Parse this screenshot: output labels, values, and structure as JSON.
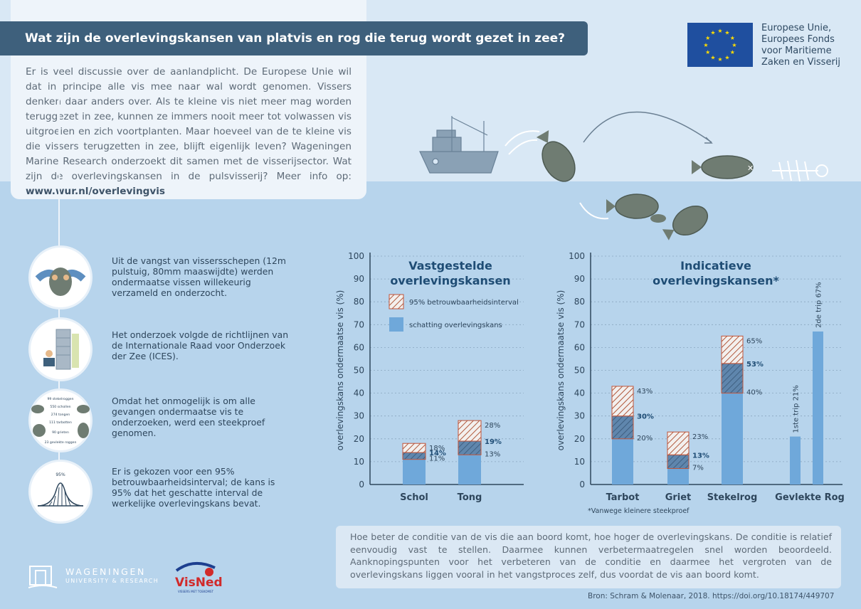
{
  "header": {
    "title": "Wat zijn de overlevingskansen van platvis en rog die terug wordt gezet in zee?",
    "intro": "Er is veel discussie over de aanlandplicht. De Europese Unie wil dat in principe alle vis mee naar wal wordt genomen. Vissers denken daar anders over. Als te kleine vis niet meer mag worden teruggezet in zee, kunnen ze immers nooit meer tot volwassen vis uitgroeien en zich voortplanten. Maar hoeveel van de te kleine vis die vissers terugzetten in zee, blijft eigenlijk leven? Wageningen Marine Research onderzoekt dit samen met de visserijsector. Wat zijn de overlevingskansen in de pulsvisserij? Meer info op: ",
    "intro_link": "www.wur.nl/overlevingvis"
  },
  "eu": {
    "line1": "Europese Unie,",
    "line2": "Europees Fonds",
    "line3": "voor Maritieme",
    "line4": "Zaken en Visserij",
    "flag_color": "#1f4f9f",
    "star_color": "#ffdd00"
  },
  "steps": [
    {
      "text": "Uit de vangst van vissersschepen (12m pulstuig, 80mm maaswijdte) werden ondermaatse vissen willekeurig verzameld en onderzocht.",
      "icon": "hands-holding-fish-icon"
    },
    {
      "text": "Het onderzoek volgde de richtlijnen van de Internationale Raad voor Onderzoek der Zee (ICES).",
      "icon": "researcher-lab-icon"
    },
    {
      "text": "Omdat het onmogelijk is om alle gevangen ondermaatse vis te onderzoeken, werd een steekproef genomen.",
      "icon": "sample-fish-icon",
      "sample_labels": [
        "99 stekelroggen",
        "550 schollen",
        "274 tongen",
        "111 tarbotten",
        "90 grieten",
        "23 gevlekte roggen"
      ]
    },
    {
      "text": "Er is gekozen voor een 95% betrouwbaarheidsinterval; de kans is 95% dat het geschatte interval de werkelijke overlevingskans bevat.",
      "icon": "bell-curve-icon",
      "curve_label": "95%"
    }
  ],
  "chart_data": [
    {
      "type": "bar",
      "title_line1": "Vastgestelde",
      "title_line2": "overlevingskansen",
      "ylabel": "overlevingskans ondermaatse vis (%)",
      "ylim": [
        0,
        100
      ],
      "yticks": [
        0,
        10,
        20,
        30,
        40,
        50,
        60,
        70,
        80,
        90,
        100
      ],
      "grid": true,
      "legend": {
        "placement": "top-left",
        "interval_label": "95% betrouwbaarheidsinterval",
        "estimate_label": "schatting overlevingskans"
      },
      "categories": [
        "Schol",
        "Tong"
      ],
      "estimate": [
        14,
        19
      ],
      "lower": [
        11,
        13
      ],
      "upper": [
        18,
        28
      ],
      "estimate_labels": [
        "14%",
        "19%"
      ],
      "lower_labels": [
        "11%",
        "13%"
      ],
      "upper_labels": [
        "18%",
        "28%"
      ]
    },
    {
      "type": "bar",
      "title_line1": "Indicatieve",
      "title_line2": "overlevingskansen*",
      "ylabel": "overlevingskans ondermaatse vis (%)",
      "ylim": [
        0,
        100
      ],
      "yticks": [
        0,
        10,
        20,
        30,
        40,
        50,
        60,
        70,
        80,
        90,
        100
      ],
      "grid": true,
      "categories": [
        "Tarbot",
        "Griet",
        "Stekelrog",
        "Gevlekte Rog"
      ],
      "estimate": [
        30,
        13,
        53,
        null
      ],
      "lower": [
        20,
        7,
        40,
        null
      ],
      "upper": [
        43,
        23,
        65,
        null
      ],
      "estimate_labels": [
        "30%",
        "13%",
        "53%",
        ""
      ],
      "lower_labels": [
        "20%",
        "7%",
        "40%",
        ""
      ],
      "upper_labels": [
        "43%",
        "23%",
        "65%",
        ""
      ],
      "trips": [
        {
          "category": "Gevlekte Rog",
          "label": "1ste trip 21%",
          "value": 21
        },
        {
          "category": "Gevlekte Rog",
          "label": "2de trip 67%",
          "value": 67
        }
      ],
      "footnote": "*Vanwege kleinere steekproef"
    }
  ],
  "colors": {
    "bar_fill": "#6fa8da",
    "interval_stroke": "#c0553a",
    "axis": "#2e465c",
    "title": "#1f4d75"
  },
  "conclusion": "Hoe beter de conditie van de vis die aan boord komt, hoe hoger de overlevingskans. De conditie is relatief eenvoudig vast te stellen. Daarmee kunnen verbetermaatregelen snel worden beoordeeld. Aanknopingspunten voor het verbeteren van de conditie en daarmee het vergroten van de overlevingskans liggen vooral in het vangstproces zelf, dus voordat de vis aan boord komt.",
  "source": "Bron: Schram & Molenaar, 2018. https://doi.org/10.18174/449707",
  "logos": {
    "wur_name": "WAGENINGEN",
    "wur_sub": "UNIVERSITY & RESEARCH",
    "visned_name": "VisNed",
    "visned_tagline": "VISSERS MET TOEKOMST"
  }
}
